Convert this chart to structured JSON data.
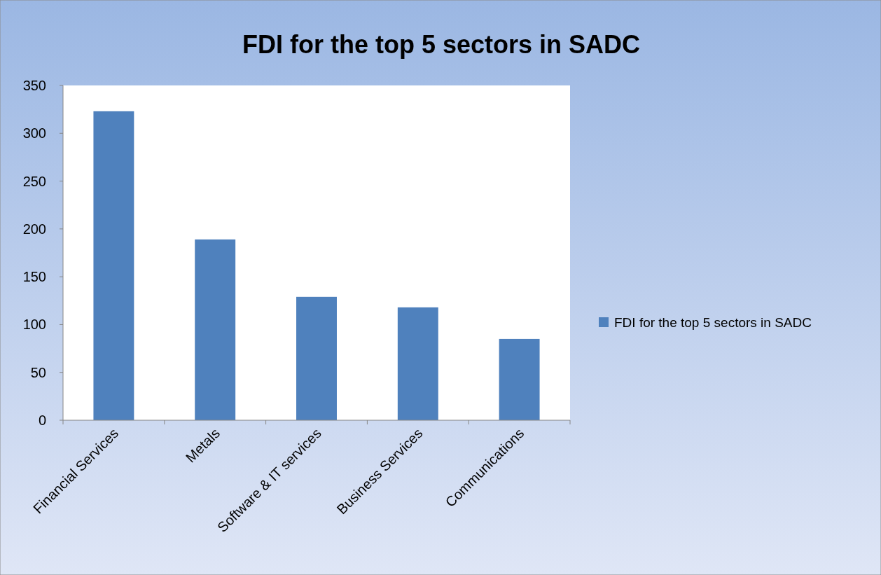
{
  "chart_data": {
    "type": "bar",
    "title": "FDI for the top 5 sectors in SADC",
    "categories": [
      "Financial Services",
      "Metals",
      "Software & IT services",
      "Business Services",
      "Communications"
    ],
    "series": [
      {
        "name": "FDI for the top 5 sectors in SADC",
        "color": "#4f81bd",
        "values": [
          323,
          189,
          129,
          118,
          85
        ]
      }
    ],
    "ylim": [
      0,
      350
    ],
    "yticks": [
      0,
      50,
      100,
      150,
      200,
      250,
      300,
      350
    ],
    "grid": false,
    "legend": "right"
  }
}
